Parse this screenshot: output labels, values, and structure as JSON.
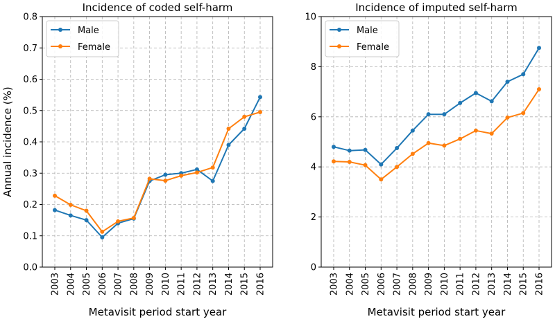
{
  "chart_data": [
    {
      "type": "line",
      "title": "Incidence of coded self-harm",
      "xlabel": "Metavisit period start year",
      "ylabel": "Annual incidence (%)",
      "ylim": [
        0,
        0.8
      ],
      "yticks": [
        "0.0",
        "0.1",
        "0.2",
        "0.3",
        "0.4",
        "0.5",
        "0.6",
        "0.7",
        "0.8"
      ],
      "ytick_values": [
        0,
        0.1,
        0.2,
        0.3,
        0.4,
        0.5,
        0.6,
        0.7,
        0.8
      ],
      "categories": [
        "2003",
        "2004",
        "2005",
        "2006",
        "2007",
        "2008",
        "2009",
        "2010",
        "2011",
        "2012",
        "2013",
        "2014",
        "2015",
        "2016"
      ],
      "grid": true,
      "legend_position": "top-left",
      "series": [
        {
          "name": "Male",
          "color": "#1f77b4",
          "values": [
            0.182,
            0.165,
            0.15,
            0.095,
            0.14,
            0.155,
            0.275,
            0.295,
            0.3,
            0.312,
            0.275,
            0.39,
            0.442,
            0.543
          ]
        },
        {
          "name": "Female",
          "color": "#ff7f0e",
          "values": [
            0.228,
            0.199,
            0.18,
            0.113,
            0.146,
            0.157,
            0.282,
            0.276,
            0.292,
            0.302,
            0.318,
            0.442,
            0.48,
            0.495
          ]
        }
      ]
    },
    {
      "type": "line",
      "title": "Incidence of imputed self-harm",
      "xlabel": "Metavisit period start year",
      "ylabel": "",
      "ylim": [
        0,
        10
      ],
      "yticks": [
        "0",
        "2",
        "4",
        "6",
        "8",
        "10"
      ],
      "ytick_values": [
        0,
        2,
        4,
        6,
        8,
        10
      ],
      "categories": [
        "2003",
        "2004",
        "2005",
        "2006",
        "2007",
        "2008",
        "2009",
        "2010",
        "2011",
        "2012",
        "2013",
        "2014",
        "2015",
        "2016"
      ],
      "grid": true,
      "legend_position": "top-left",
      "series": [
        {
          "name": "Male",
          "color": "#1f77b4",
          "values": [
            4.8,
            4.65,
            4.68,
            4.1,
            4.75,
            5.45,
            6.1,
            6.1,
            6.55,
            6.95,
            6.62,
            7.4,
            7.7,
            8.75
          ]
        },
        {
          "name": "Female",
          "color": "#ff7f0e",
          "values": [
            4.22,
            4.2,
            4.07,
            3.5,
            4.0,
            4.52,
            4.95,
            4.85,
            5.12,
            5.45,
            5.33,
            5.97,
            6.15,
            7.1
          ]
        }
      ]
    }
  ]
}
